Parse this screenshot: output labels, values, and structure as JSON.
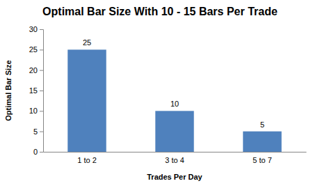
{
  "chart_data": {
    "type": "bar",
    "title": "Optimal Bar Size With 10 - 15 Bars Per Trade",
    "x_label": "Trades Per Day",
    "y_label": "Optimal Bar Size",
    "categories": [
      "1 to 2",
      "3 to 4",
      "5 to 7"
    ],
    "values": [
      25,
      10,
      5
    ],
    "color": "#4f81bd",
    "ylim": [
      0,
      30
    ],
    "yticks": [
      0,
      5,
      10,
      15,
      20,
      25,
      30
    ],
    "grid": false,
    "data_labels": true
  }
}
